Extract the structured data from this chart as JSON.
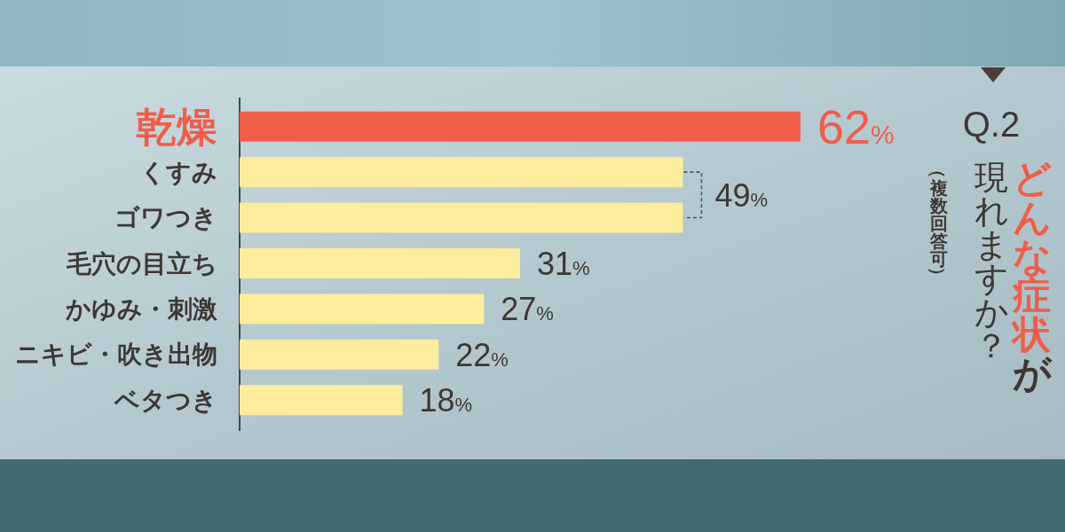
{
  "chart_data": {
    "type": "bar",
    "orientation": "horizontal",
    "title": "Q.2",
    "subtitle": "どんな症状が",
    "annotations": [
      "現れますか？",
      "（複数回答可）"
    ],
    "categories": [
      "乾燥",
      "くすみ",
      "ゴワつき",
      "毛穴の目立ち",
      "かゆみ・刺激",
      "ニキビ・吹き出物",
      "ベタつき"
    ],
    "values": [
      62,
      49,
      49,
      31,
      27,
      22,
      18
    ],
    "colors": [
      "#f05d4a",
      "#fdec9b",
      "#fdec9b",
      "#fdec9b",
      "#fdec9b",
      "#fdec9b",
      "#fdec9b"
    ],
    "value_labels": [
      "62%",
      "49%",
      null,
      "31%",
      "27%",
      "22%",
      "18%"
    ]
  }
}
